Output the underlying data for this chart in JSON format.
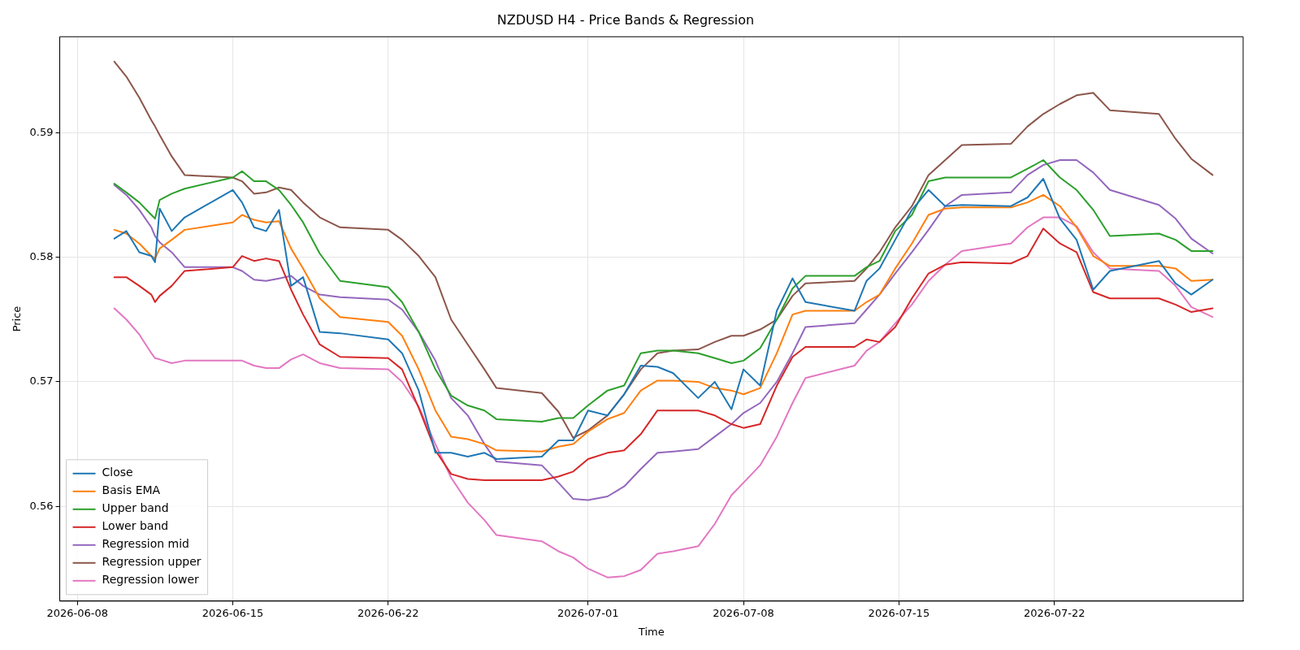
{
  "chart_data": {
    "type": "line",
    "title": "NZDUSD H4 - Price Bands & Regression",
    "xlabel": "Time",
    "ylabel": "Price",
    "x": [
      "2026-06-09T16:00",
      "2026-06-10T05:00",
      "2026-06-10T19:00",
      "2026-06-11T08:00",
      "2026-06-11T12:00",
      "2026-06-11T17:00",
      "2026-06-12T06:00",
      "2026-06-12T20:00",
      "2026-06-15T00:00",
      "2026-06-15T10:00",
      "2026-06-15T23:00",
      "2026-06-16T12:00",
      "2026-06-17T02:00",
      "2026-06-17T15:00",
      "2026-06-18T04:00",
      "2026-06-18T22:00",
      "2026-06-19T20:00",
      "2026-06-22T00:00",
      "2026-06-22T15:00",
      "2026-06-23T09:00",
      "2026-06-24T03:00",
      "2026-06-24T20:00",
      "2026-06-25T14:00",
      "2026-06-26T08:00",
      "2026-06-26T21:00",
      "2026-06-28T22:00",
      "2026-06-29T16:00",
      "2026-06-30T08:00",
      "2026-07-01T00:00",
      "2026-07-01T21:00",
      "2026-07-02T15:00",
      "2026-07-03T09:00",
      "2026-07-04T03:00",
      "2026-07-04T20:00",
      "2026-07-05T23:00",
      "2026-07-06T17:00",
      "2026-07-07T11:00",
      "2026-07-08T00:00",
      "2026-07-08T18:00",
      "2026-07-09T12:00",
      "2026-07-10T05:00",
      "2026-07-10T19:00",
      "2026-07-13T00:00",
      "2026-07-13T13:00",
      "2026-07-14T03:00",
      "2026-07-14T20:00",
      "2026-07-15T14:00",
      "2026-07-16T08:00",
      "2026-07-17T02:00",
      "2026-07-17T20:00",
      "2026-07-20T01:00",
      "2026-07-20T19:00",
      "2026-07-21T12:00",
      "2026-07-22T06:00",
      "2026-07-23T00:00",
      "2026-07-23T18:00",
      "2026-07-24T12:00",
      "2026-07-26T17:00",
      "2026-07-27T11:00",
      "2026-07-28T04:00",
      "2026-07-29T03:00"
    ],
    "series": [
      {
        "name": "Close",
        "color": "#1f77b4",
        "values": [
          0.5815,
          0.5821,
          0.5804,
          0.5801,
          0.5796,
          0.5839,
          0.5821,
          0.5832,
          0.5854,
          0.5844,
          0.5824,
          0.5821,
          0.5838,
          0.5777,
          0.5784,
          0.574,
          0.5739,
          0.5734,
          0.5723,
          0.5693,
          0.5643,
          0.5643,
          0.564,
          0.5643,
          0.5638,
          0.564,
          0.5653,
          0.5653,
          0.5677,
          0.5673,
          0.569,
          0.5713,
          0.5712,
          0.5707,
          0.5687,
          0.57,
          0.5678,
          0.571,
          0.5697,
          0.5757,
          0.5783,
          0.5764,
          0.5757,
          0.5781,
          0.5791,
          0.5814,
          0.5838,
          0.5854,
          0.5841,
          0.5842,
          0.5841,
          0.5848,
          0.5863,
          0.5831,
          0.5814,
          0.5774,
          0.5789,
          0.5797,
          0.5779,
          0.577,
          0.5782
        ]
      },
      {
        "name": "Basis EMA",
        "color": "#ff7f0e",
        "values": [
          0.5822,
          0.5819,
          0.5811,
          0.5801,
          0.5799,
          0.5807,
          0.5814,
          0.5822,
          0.5828,
          0.5834,
          0.583,
          0.5828,
          0.5829,
          0.5807,
          0.5791,
          0.5767,
          0.5752,
          0.5748,
          0.5737,
          0.571,
          0.5677,
          0.5656,
          0.5654,
          0.565,
          0.5645,
          0.5644,
          0.5648,
          0.565,
          0.566,
          0.567,
          0.5675,
          0.5693,
          0.5701,
          0.5701,
          0.57,
          0.5695,
          0.5693,
          0.569,
          0.5695,
          0.5723,
          0.5754,
          0.5757,
          0.5757,
          0.5764,
          0.577,
          0.5791,
          0.5811,
          0.5834,
          0.5839,
          0.584,
          0.584,
          0.5844,
          0.585,
          0.5841,
          0.5824,
          0.5801,
          0.5793,
          0.5793,
          0.5791,
          0.5781,
          0.5782
        ]
      },
      {
        "name": "Upper band",
        "color": "#2ca02c",
        "values": [
          0.5859,
          0.5852,
          0.5844,
          0.5834,
          0.5831,
          0.5846,
          0.5851,
          0.5855,
          0.5864,
          0.5869,
          0.5861,
          0.5861,
          0.5854,
          0.5842,
          0.5828,
          0.5803,
          0.5781,
          0.5776,
          0.5764,
          0.574,
          0.571,
          0.5689,
          0.5681,
          0.5677,
          0.567,
          0.5668,
          0.5671,
          0.5671,
          0.5681,
          0.5693,
          0.5697,
          0.5723,
          0.5725,
          0.5725,
          0.5723,
          0.5719,
          0.5715,
          0.5717,
          0.5727,
          0.575,
          0.5775,
          0.5785,
          0.5785,
          0.5792,
          0.5797,
          0.5821,
          0.5834,
          0.5861,
          0.5864,
          0.5864,
          0.5864,
          0.5871,
          0.5878,
          0.5864,
          0.5854,
          0.5838,
          0.5817,
          0.5819,
          0.5814,
          0.5805,
          0.5805
        ]
      },
      {
        "name": "Lower band",
        "color": "#d62728",
        "values": [
          0.5784,
          0.5784,
          0.5777,
          0.577,
          0.5764,
          0.5769,
          0.5777,
          0.5789,
          0.5792,
          0.5801,
          0.5797,
          0.5799,
          0.5797,
          0.5774,
          0.5754,
          0.573,
          0.572,
          0.5719,
          0.571,
          0.5679,
          0.5645,
          0.5626,
          0.5622,
          0.5621,
          0.5621,
          0.5621,
          0.5624,
          0.5628,
          0.5638,
          0.5643,
          0.5645,
          0.5658,
          0.5677,
          0.5677,
          0.5677,
          0.5673,
          0.5666,
          0.5663,
          0.5666,
          0.5697,
          0.572,
          0.5728,
          0.5728,
          0.5734,
          0.5732,
          0.5744,
          0.5767,
          0.5787,
          0.5794,
          0.5796,
          0.5795,
          0.5801,
          0.5823,
          0.5811,
          0.5804,
          0.5772,
          0.5767,
          0.5767,
          0.5762,
          0.5756,
          0.5759
        ]
      },
      {
        "name": "Regression mid",
        "color": "#9467bd",
        "values": [
          0.5858,
          0.585,
          0.5838,
          0.5824,
          0.5817,
          0.5812,
          0.5804,
          0.5792,
          0.5792,
          0.5789,
          0.5782,
          0.5781,
          0.5783,
          0.5785,
          0.5777,
          0.577,
          0.5768,
          0.5766,
          0.5758,
          0.574,
          0.5717,
          0.5687,
          0.5673,
          0.565,
          0.5636,
          0.5633,
          0.5619,
          0.5606,
          0.5605,
          0.5608,
          0.5616,
          0.563,
          0.5643,
          0.5644,
          0.5646,
          0.5656,
          0.5666,
          0.5675,
          0.5683,
          0.57,
          0.5723,
          0.5744,
          0.5747,
          0.5758,
          0.577,
          0.5787,
          0.5804,
          0.5822,
          0.5841,
          0.585,
          0.5852,
          0.5866,
          0.5874,
          0.5878,
          0.5878,
          0.5868,
          0.5854,
          0.5842,
          0.5831,
          0.5815,
          0.5803
        ]
      },
      {
        "name": "Regression upper",
        "color": "#8c564b",
        "values": [
          0.5957,
          0.5945,
          0.5928,
          0.591,
          0.5905,
          0.5898,
          0.5881,
          0.5866,
          0.5864,
          0.5861,
          0.5851,
          0.5852,
          0.5856,
          0.5854,
          0.5844,
          0.5832,
          0.5824,
          0.5822,
          0.5814,
          0.5801,
          0.5784,
          0.575,
          0.573,
          0.571,
          0.5695,
          0.5691,
          0.5676,
          0.5655,
          0.5661,
          0.5673,
          0.569,
          0.571,
          0.5723,
          0.5725,
          0.5726,
          0.5732,
          0.5737,
          0.5737,
          0.5742,
          0.575,
          0.5769,
          0.5779,
          0.5781,
          0.5791,
          0.5804,
          0.5824,
          0.5841,
          0.5866,
          0.5878,
          0.589,
          0.5891,
          0.5905,
          0.5915,
          0.5923,
          0.593,
          0.5932,
          0.5918,
          0.5915,
          0.5895,
          0.5879,
          0.5866
        ]
      },
      {
        "name": "Regression lower",
        "color": "#e377c2",
        "values": [
          0.5759,
          0.575,
          0.5738,
          0.5723,
          0.5719,
          0.5718,
          0.5715,
          0.5717,
          0.5717,
          0.5717,
          0.5713,
          0.5711,
          0.5711,
          0.5718,
          0.5722,
          0.5715,
          0.5711,
          0.571,
          0.57,
          0.568,
          0.565,
          0.5623,
          0.5603,
          0.5589,
          0.5577,
          0.5572,
          0.5564,
          0.5559,
          0.555,
          0.5543,
          0.5544,
          0.5549,
          0.5562,
          0.5564,
          0.5568,
          0.5586,
          0.5609,
          0.5619,
          0.5633,
          0.5656,
          0.5683,
          0.5703,
          0.5713,
          0.5725,
          0.5732,
          0.5747,
          0.5762,
          0.5781,
          0.5794,
          0.5805,
          0.5811,
          0.5824,
          0.5832,
          0.5832,
          0.5825,
          0.5804,
          0.5791,
          0.5789,
          0.5777,
          0.576,
          0.5752
        ]
      }
    ],
    "xlim": [
      "2026-06-07T05:00",
      "2026-07-30T12:00"
    ],
    "xticks": [
      "2026-06-08",
      "2026-06-15",
      "2026-06-22",
      "2026-07-01",
      "2026-07-08",
      "2026-07-15",
      "2026-07-22"
    ],
    "ylim": [
      0.5524,
      0.5977
    ],
    "yticks": [
      0.56,
      0.57,
      0.58,
      0.59
    ],
    "grid": true,
    "legend": "bottom left",
    "marker": "none",
    "line_style": "solid"
  }
}
